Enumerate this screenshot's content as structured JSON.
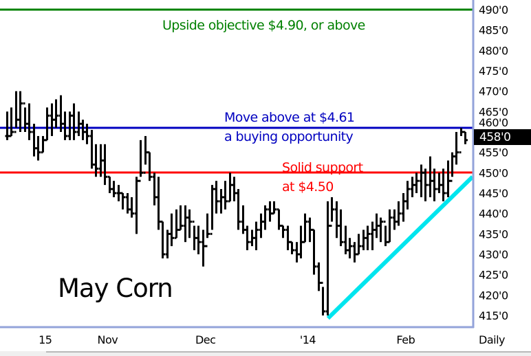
{
  "chart_data": {
    "type": "ohlc",
    "title": "May Corn",
    "period_label": "Daily",
    "ylim": [
      412,
      492
    ],
    "y_ticks": [
      "490'0",
      "485'0",
      "480'0",
      "475'0",
      "470'0",
      "465'0",
      "460'0",
      "455'0",
      "450'0",
      "445'0",
      "440'0",
      "435'0",
      "430'0",
      "425'0",
      "420'0",
      "415'0"
    ],
    "y_tick_values": [
      490,
      485,
      480,
      475,
      470,
      465,
      460,
      455,
      450,
      445,
      440,
      435,
      430,
      425,
      420,
      415
    ],
    "x_ticks": [
      {
        "label": "15",
        "bar": 8
      },
      {
        "label": "Nov",
        "bar": 22
      },
      {
        "label": "Dec",
        "bar": 44
      },
      {
        "label": "'14",
        "bar": 67
      },
      {
        "label": "Feb",
        "bar": 89
      }
    ],
    "last_price": {
      "label": "458'0",
      "value": 458
    },
    "grid": false,
    "bars": [
      [
        465,
        458,
        459
      ],
      [
        466,
        459,
        460
      ],
      [
        470,
        461,
        463
      ],
      [
        470,
        460,
        467
      ],
      [
        466,
        460,
        462
      ],
      [
        467,
        458,
        460
      ],
      [
        462,
        454,
        456
      ],
      [
        459,
        453,
        455
      ],
      [
        459,
        455,
        458
      ],
      [
        466,
        458,
        464
      ],
      [
        467,
        459,
        463
      ],
      [
        468,
        461,
        464
      ],
      [
        469,
        460,
        462
      ],
      [
        465,
        458,
        459
      ],
      [
        465,
        458,
        464
      ],
      [
        467,
        458,
        460
      ],
      [
        465,
        459,
        462
      ],
      [
        463,
        458,
        460
      ],
      [
        462,
        457,
        459
      ],
      [
        460.5,
        451,
        452
      ],
      [
        457,
        449,
        451
      ],
      [
        457,
        449,
        453
      ],
      [
        457,
        447,
        449
      ],
      [
        449,
        445,
        446
      ],
      [
        448,
        444,
        445
      ],
      [
        447,
        443,
        445
      ],
      [
        445,
        441,
        444
      ],
      [
        445,
        440,
        441
      ],
      [
        444,
        439,
        440
      ],
      [
        449,
        435,
        448
      ],
      [
        458,
        449,
        450
      ],
      [
        459,
        452,
        455
      ],
      [
        455,
        448,
        449
      ],
      [
        450,
        442,
        444
      ],
      [
        449,
        436,
        438
      ],
      [
        438,
        429,
        430
      ],
      [
        436,
        429,
        435
      ],
      [
        440,
        432,
        434
      ],
      [
        441,
        434,
        436
      ],
      [
        442,
        436,
        437
      ],
      [
        442,
        433,
        439
      ],
      [
        441,
        434,
        438
      ],
      [
        437,
        431,
        434
      ],
      [
        437,
        430,
        433
      ],
      [
        436,
        427,
        432
      ],
      [
        440,
        434,
        435
      ],
      [
        447,
        436,
        446
      ],
      [
        448,
        440,
        443
      ],
      [
        446,
        440,
        444
      ],
      [
        448,
        441,
        443
      ],
      [
        450,
        443,
        447
      ],
      [
        449,
        443,
        445
      ],
      [
        446,
        436,
        438
      ],
      [
        442,
        435,
        436
      ],
      [
        437,
        431,
        433
      ],
      [
        436,
        432,
        434
      ],
      [
        438,
        431,
        436
      ],
      [
        440,
        434,
        438
      ],
      [
        442,
        436,
        441
      ],
      [
        443,
        438,
        440
      ],
      [
        443,
        440,
        441
      ],
      [
        441,
        436,
        437
      ],
      [
        437,
        434,
        436
      ],
      [
        437,
        431,
        433
      ],
      [
        433,
        430,
        431
      ],
      [
        433,
        428,
        430
      ],
      [
        437,
        429,
        433
      ],
      [
        440,
        433,
        438
      ],
      [
        439,
        433,
        436
      ],
      [
        436,
        425,
        427
      ],
      [
        428,
        421,
        423
      ],
      [
        422,
        415,
        416
      ],
      [
        443,
        415,
        437
      ],
      [
        444,
        438,
        441
      ],
      [
        443,
        434,
        437
      ],
      [
        441,
        432,
        433
      ],
      [
        437,
        430,
        431
      ],
      [
        434,
        429,
        432
      ],
      [
        433,
        428,
        430
      ],
      [
        435,
        430,
        432
      ],
      [
        436,
        431,
        434
      ],
      [
        437,
        431,
        435
      ],
      [
        438,
        431,
        436
      ],
      [
        440,
        434,
        437
      ],
      [
        439,
        433,
        438
      ],
      [
        437,
        432,
        433
      ],
      [
        441,
        433,
        439
      ],
      [
        441,
        436,
        438
      ],
      [
        443,
        437,
        440
      ],
      [
        445,
        438,
        443
      ],
      [
        448,
        441,
        446
      ],
      [
        449,
        444,
        447
      ],
      [
        450,
        445,
        448
      ],
      [
        452,
        444,
        450
      ],
      [
        451,
        443,
        447
      ],
      [
        454,
        444,
        448
      ],
      [
        451,
        443,
        446
      ],
      [
        450,
        445,
        447
      ],
      [
        451,
        443,
        445
      ],
      [
        453,
        444,
        448
      ],
      [
        455,
        449,
        454
      ],
      [
        460,
        452,
        455
      ],
      [
        461,
        459,
        460
      ],
      [
        460,
        457,
        458
      ]
    ],
    "annotations": [
      {
        "id": "objective",
        "kind": "hline",
        "value": 490,
        "color": "#008000",
        "lines": [
          "Upside objective $4.90, or above"
        ]
      },
      {
        "id": "resistance",
        "kind": "hline",
        "value": 461,
        "color": "#0000c0",
        "lines": [
          "Move above at $4.61",
          "a buying opportunity"
        ]
      },
      {
        "id": "support",
        "kind": "hline",
        "value": 450,
        "color": "#ff0000",
        "lines": [
          "Solid support",
          "at $4.50"
        ]
      }
    ],
    "trendline": {
      "color": "#00e5ee",
      "from": {
        "bar": 72,
        "price": 414.3
      },
      "to_price_at_axis": 449
    }
  }
}
